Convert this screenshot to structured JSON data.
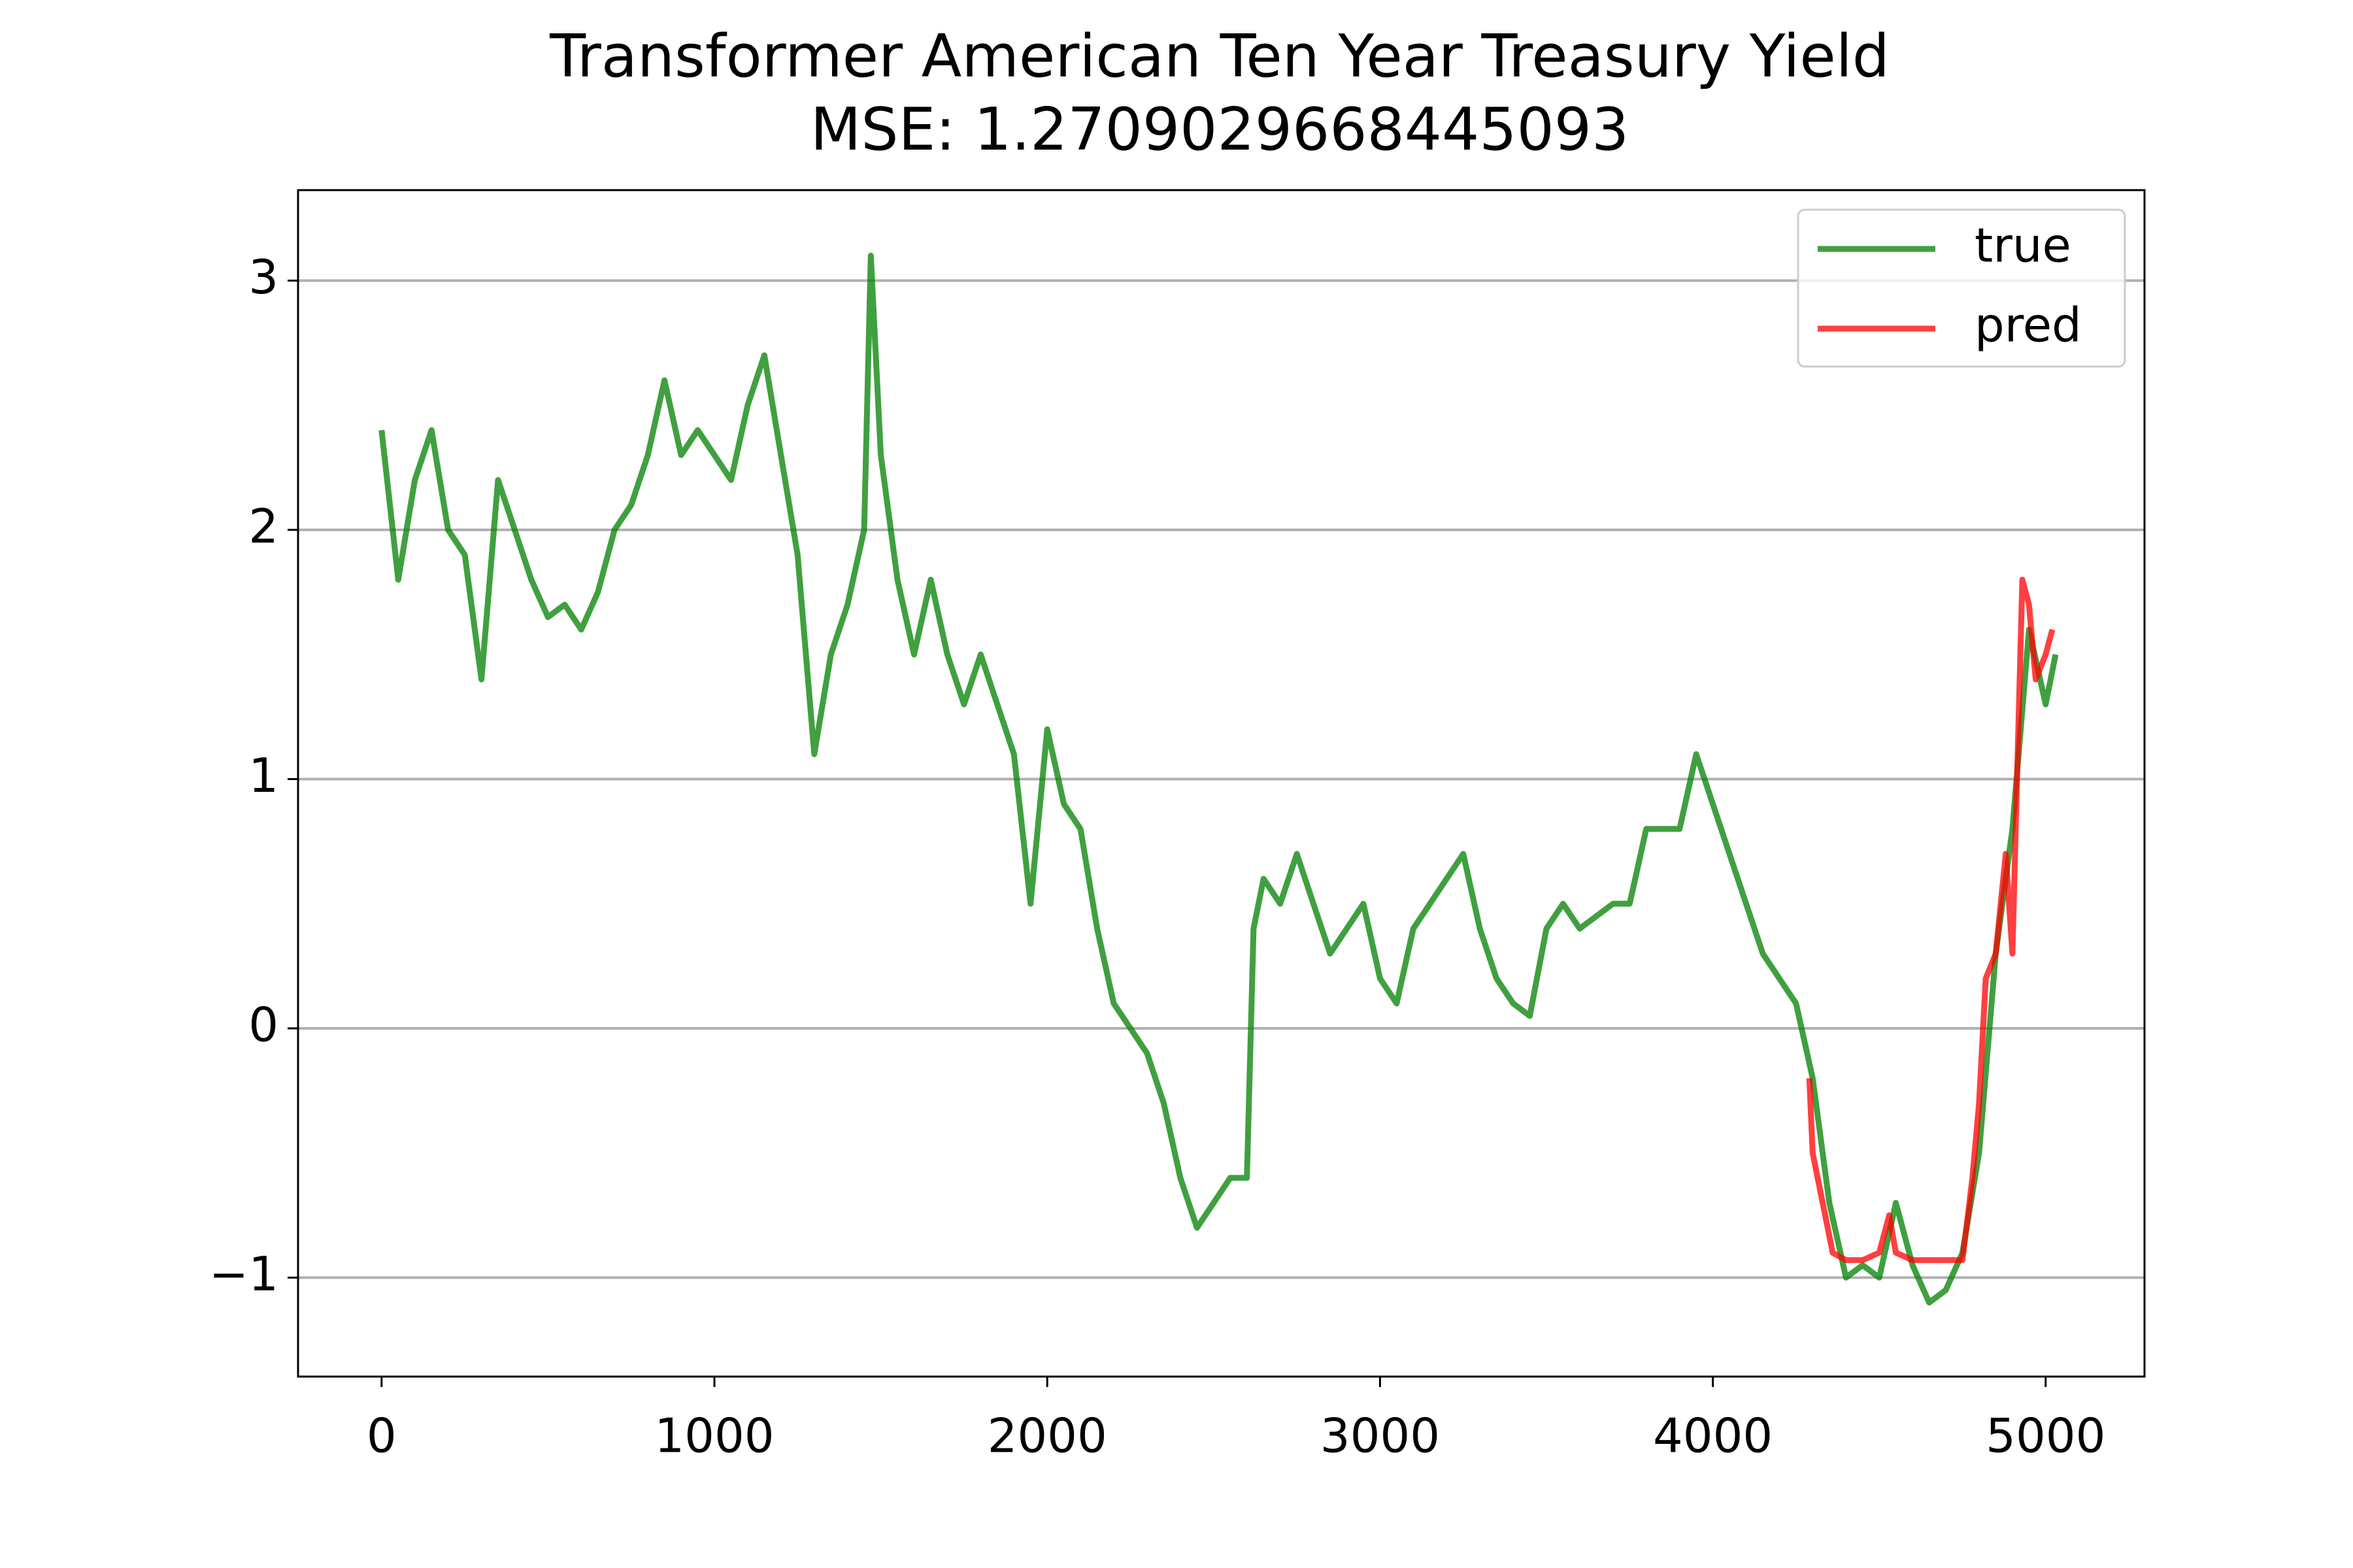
{
  "chart_data": {
    "type": "line",
    "title": "Transformer American Ten Year Treasury Yield",
    "subtitle": "MSE: 1.2709029668445093",
    "xlim": [
      -251,
      5297
    ],
    "xticks": [
      0,
      1000,
      2000,
      3000,
      4000,
      5000
    ],
    "ylim": [
      -1.397,
      3.363
    ],
    "yticks": [
      {
        "value": -1,
        "label": "−1"
      },
      0,
      1,
      2,
      3
    ],
    "grid": "y",
    "legend": "upper right",
    "series": [
      {
        "name": "true",
        "color": "#008000",
        "x": [
          0,
          50,
          100,
          150,
          200,
          250,
          300,
          350,
          400,
          450,
          500,
          550,
          600,
          650,
          700,
          750,
          800,
          850,
          900,
          950,
          1000,
          1050,
          1100,
          1150,
          1200,
          1250,
          1300,
          1350,
          1400,
          1450,
          1470,
          1500,
          1550,
          1600,
          1650,
          1700,
          1750,
          1800,
          1850,
          1900,
          1950,
          2000,
          2050,
          2100,
          2150,
          2200,
          2250,
          2300,
          2350,
          2400,
          2450,
          2500,
          2550,
          2600,
          2620,
          2650,
          2700,
          2750,
          2800,
          2850,
          2900,
          2950,
          3000,
          3050,
          3100,
          3150,
          3200,
          3250,
          3300,
          3350,
          3400,
          3450,
          3500,
          3550,
          3600,
          3650,
          3700,
          3750,
          3800,
          3850,
          3900,
          3950,
          4000,
          4050,
          4100,
          4150,
          4200,
          4250,
          4300,
          4350,
          4400,
          4450,
          4500,
          4550,
          4600,
          4650,
          4700,
          4750,
          4800,
          4850,
          4900,
          4950,
          5000,
          5030
        ],
        "values": [
          2.4,
          1.8,
          2.2,
          2.4,
          2.0,
          1.9,
          1.4,
          2.2,
          2.0,
          1.8,
          1.65,
          1.7,
          1.6,
          1.75,
          2.0,
          2.1,
          2.3,
          2.6,
          2.3,
          2.4,
          2.3,
          2.2,
          2.5,
          2.7,
          2.3,
          1.9,
          1.1,
          1.5,
          1.7,
          2.0,
          3.1,
          2.3,
          1.8,
          1.5,
          1.8,
          1.5,
          1.3,
          1.5,
          1.3,
          1.1,
          0.5,
          1.2,
          0.9,
          0.8,
          0.4,
          0.1,
          0.0,
          -0.1,
          -0.3,
          -0.6,
          -0.8,
          -0.7,
          -0.6,
          -0.6,
          0.4,
          0.6,
          0.5,
          0.7,
          0.5,
          0.3,
          0.4,
          0.5,
          0.2,
          0.1,
          0.4,
          0.5,
          0.6,
          0.7,
          0.4,
          0.2,
          0.1,
          0.05,
          0.4,
          0.5,
          0.4,
          0.45,
          0.5,
          0.5,
          0.8,
          0.8,
          0.8,
          1.1,
          0.9,
          0.7,
          0.5,
          0.3,
          0.2,
          0.1,
          -0.2,
          -0.7,
          -1.0,
          -0.95,
          -1.0,
          -0.7,
          -0.95,
          -1.1,
          -1.05,
          -0.9,
          -0.5,
          0.3,
          0.8,
          1.6,
          1.3,
          1.5
        ]
      },
      {
        "name": "pred",
        "color": "#ff0000",
        "x": [
          4290,
          4300,
          4330,
          4360,
          4400,
          4450,
          4500,
          4530,
          4550,
          4600,
          4650,
          4700,
          4750,
          4780,
          4800,
          4820,
          4850,
          4880,
          4900,
          4920,
          4930,
          4950,
          4970,
          5000,
          5020
        ],
        "values": [
          -0.2,
          -0.5,
          -0.7,
          -0.9,
          -0.93,
          -0.93,
          -0.9,
          -0.75,
          -0.9,
          -0.93,
          -0.93,
          -0.93,
          -0.93,
          -0.6,
          -0.3,
          0.2,
          0.3,
          0.7,
          0.3,
          1.3,
          1.8,
          1.7,
          1.4,
          1.5,
          1.6
        ]
      }
    ]
  }
}
